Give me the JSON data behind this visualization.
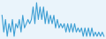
{
  "values": [
    32,
    24,
    30,
    22,
    28,
    24,
    30,
    22,
    28,
    26,
    30,
    24,
    32,
    26,
    28,
    30,
    28,
    30,
    36,
    28,
    38,
    30,
    36,
    30,
    36,
    28,
    34,
    28,
    32,
    28,
    32,
    26,
    30,
    26,
    28,
    26,
    28,
    24,
    28,
    24,
    28,
    24,
    28,
    24,
    26,
    24,
    26,
    22,
    26,
    22,
    26,
    22,
    26,
    22,
    24,
    22,
    24,
    22,
    24,
    22
  ],
  "line_color": "#3d9fd4",
  "line_width": 0.8,
  "background_color": "#eaf4fb"
}
